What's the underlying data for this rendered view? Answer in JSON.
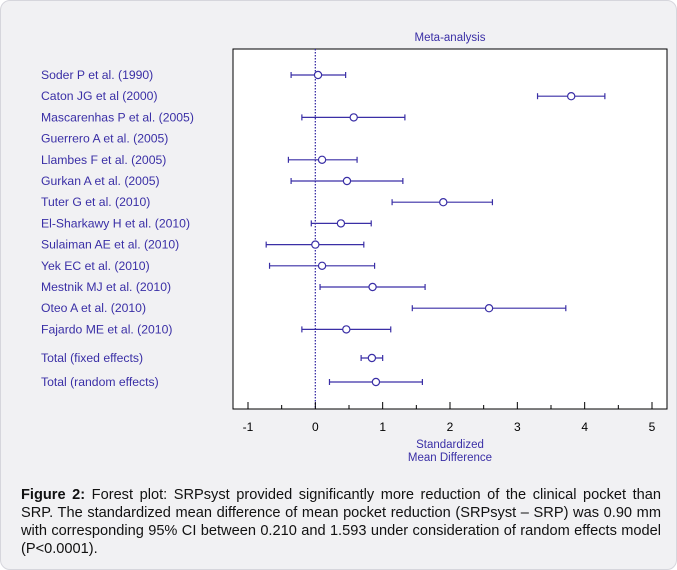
{
  "chart_data": {
    "type": "forest",
    "title": "Meta-analysis",
    "xlabel": "Standardized\nMean Difference",
    "xlim": [
      -1.1,
      5.1
    ],
    "xticks": [
      -1,
      0,
      1,
      2,
      3,
      4,
      5
    ],
    "reference_line": 0,
    "colors": {
      "marks": "#3a2fa6",
      "labels": "#3a2fa6",
      "axis": "#000000",
      "reference": "#3a2fa6"
    },
    "studies": [
      {
        "label": "Soder P et al. (1990)",
        "estimate": 0.04,
        "ci": [
          -0.36,
          0.45
        ]
      },
      {
        "label": "Caton JG et al (2000)",
        "estimate": 3.8,
        "ci": [
          3.3,
          4.3
        ]
      },
      {
        "label": "Mascarenhas P et al. (2005)",
        "estimate": 0.57,
        "ci": [
          -0.2,
          1.33
        ]
      },
      {
        "label": "Guerrero A et al. (2005)",
        "estimate": null,
        "ci": null
      },
      {
        "label": "Llambes F et al. (2005)",
        "estimate": 0.1,
        "ci": [
          -0.4,
          0.62
        ]
      },
      {
        "label": "Gurkan A et al. (2005)",
        "estimate": 0.47,
        "ci": [
          -0.36,
          1.3
        ]
      },
      {
        "label": "Tuter G et al. (2010)",
        "estimate": 1.9,
        "ci": [
          1.14,
          2.63
        ]
      },
      {
        "label": "El-Sharkawy H et al. (2010)",
        "estimate": 0.38,
        "ci": [
          -0.06,
          0.83
        ]
      },
      {
        "label": "Sulaiman AE et al. (2010)",
        "estimate": 0.0,
        "ci": [
          -0.73,
          0.72
        ]
      },
      {
        "label": "Yek EC et al. (2010)",
        "estimate": 0.1,
        "ci": [
          -0.68,
          0.88
        ]
      },
      {
        "label": "Mestnik MJ et al. (2010)",
        "estimate": 0.85,
        "ci": [
          0.07,
          1.63
        ]
      },
      {
        "label": "Oteo A et al. (2010)",
        "estimate": 2.58,
        "ci": [
          1.44,
          3.72
        ]
      },
      {
        "label": "Fajardo ME et al. (2010)",
        "estimate": 0.46,
        "ci": [
          -0.2,
          1.12
        ]
      }
    ],
    "totals": [
      {
        "label": "Total (fixed effects)",
        "estimate": 0.84,
        "ci": [
          0.68,
          1.0
        ]
      },
      {
        "label": "Total (random effects)",
        "estimate": 0.9,
        "ci": [
          0.21,
          1.59
        ]
      }
    ]
  },
  "caption": {
    "bold": "Figure 2:",
    "text": " Forest plot: SRPsyst provided significantly more reduction of the clinical pocket than SRP. The standardized mean difference of mean pocket reduction (SRPsyst – SRP) was 0.90 mm with corresponding 95% CI between 0.210 and 1.593 under consideration of random effects model (P<0.0001)."
  }
}
